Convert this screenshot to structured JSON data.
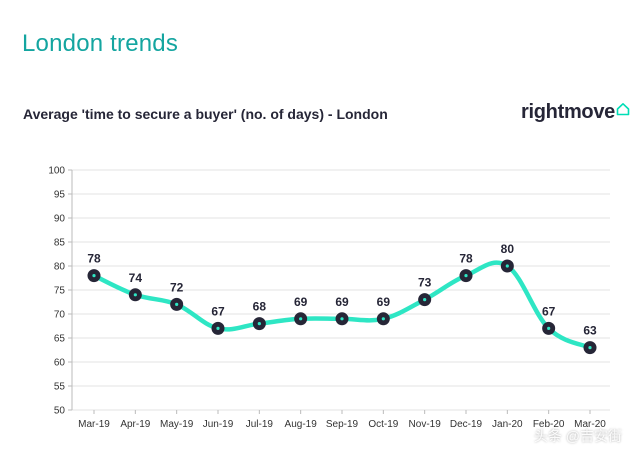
{
  "header": {
    "title": "London trends"
  },
  "brand": {
    "name": "rightmove",
    "icon": "house-outline-icon",
    "icon_color": "#00deb6"
  },
  "watermark": {
    "text": "头条 @吉安街"
  },
  "colors": {
    "title": "#14a5a0",
    "line": "#2ee6c4",
    "marker": "#262637"
  },
  "chart_data": {
    "type": "line",
    "title": "Average 'time to secure a buyer' (no. of days) - London",
    "xlabel": "",
    "ylabel": "",
    "ylim": [
      50,
      100
    ],
    "yticks": [
      "50",
      "55",
      "60",
      "65",
      "70",
      "75",
      "80",
      "85",
      "90",
      "95",
      "100"
    ],
    "grid": true,
    "categories": [
      "Mar-19",
      "Apr-19",
      "May-19",
      "Jun-19",
      "Jul-19",
      "Aug-19",
      "Sep-19",
      "Oct-19",
      "Nov-19",
      "Dec-19",
      "Jan-20",
      "Feb-20",
      "Mar-20"
    ],
    "series": [
      {
        "name": "London",
        "values": [
          78,
          74,
          72,
          67,
          68,
          69,
          69,
          69,
          73,
          78,
          80,
          67,
          63
        ]
      }
    ]
  }
}
